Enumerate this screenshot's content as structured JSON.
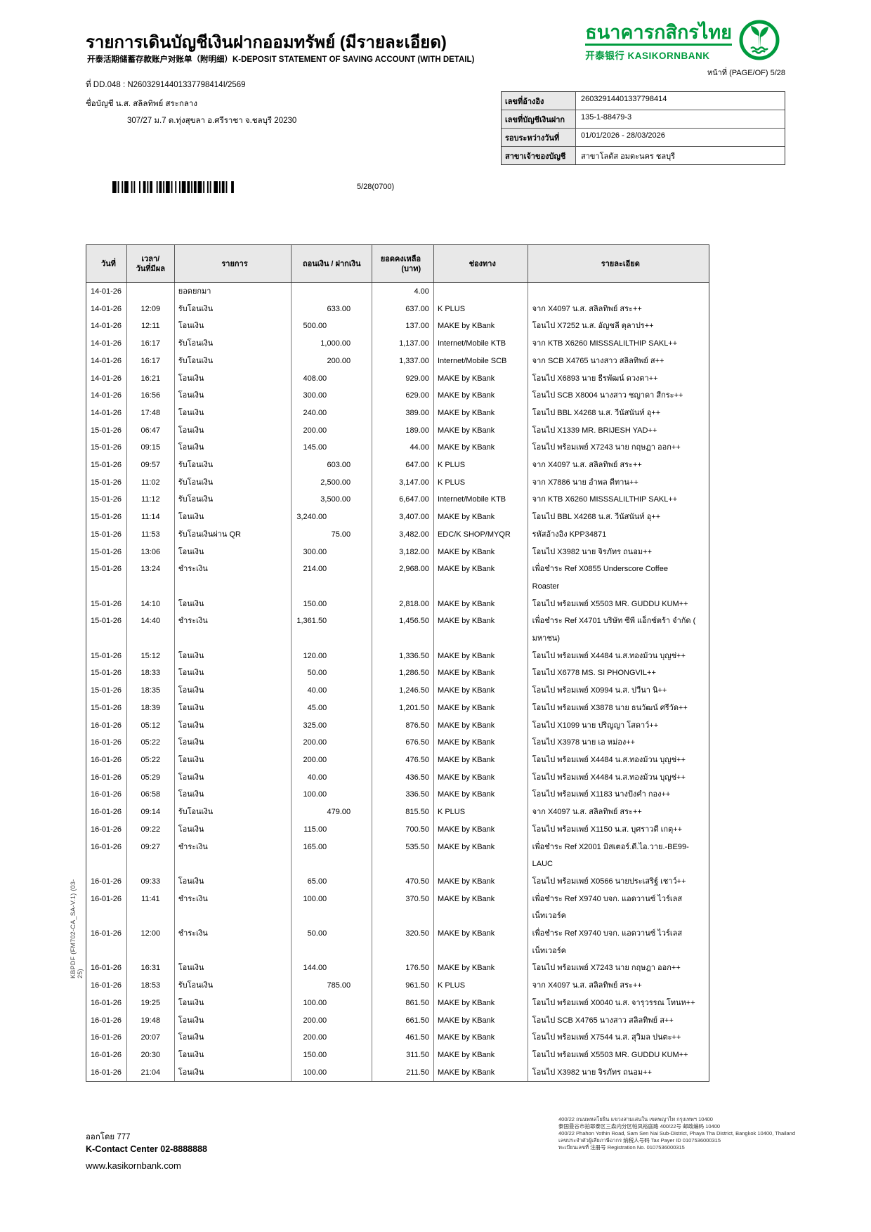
{
  "page": {
    "title_th": "รายการเดินบัญชีเงินฝากออมทรัพย์ (มีรายละเอียด)",
    "title_sub": "开泰活期储蓄存款账户对账单（附明细）K-DEPOSIT STATEMENT OF SAVING ACCOUNT (WITH DETAIL)",
    "page_label": "หน้าที่ (PAGE/OF) 5/28",
    "doc_no": "ที่ DD.048 : N26032914401337798414I/2569",
    "account_line": "ชื่อบัญชี  น.ส. สลิลทิพย์ สระกลาง",
    "account_address": "307/27 ม.7 ต.ทุ่งสุขลา อ.ศรีราชา จ.ชลบุรี 20230",
    "barcode_caption": "5/28(0700)"
  },
  "bank": {
    "name_th": "ธนาคารกสิกรไทย",
    "name_sub": "开泰银行 KASIKORNBANK",
    "brand_green": "#009b3e"
  },
  "info_table": {
    "rows": [
      {
        "label": "เลขที่อ้างอิง",
        "value": "26032914401337798414"
      },
      {
        "label": "เลขที่บัญชีเงินฝาก",
        "value": "135-1-88479-3"
      },
      {
        "label": "รอบระหว่างวันที่",
        "value": "01/01/2026 - 28/03/2026"
      },
      {
        "label": "สาขาเจ้าของบัญชี",
        "value": "สาขาโลตัส อมตะนคร ชลบุรี"
      }
    ]
  },
  "statement": {
    "headers": [
      "วันที่",
      "เวลา/\nวันที่มีผล",
      "รายการ",
      "ถอนเงิน / ฝากเงิน",
      "ยอดคงเหลือ\n(บาท)",
      "ช่องทาง",
      "รายละเอียด"
    ],
    "rows": [
      {
        "date": "14-01-26",
        "time": "",
        "item": "ยอดยกมา",
        "amount": "",
        "kind": "",
        "balance": "4.00",
        "channel": "",
        "detail": ""
      },
      {
        "date": "14-01-26",
        "time": "12:09",
        "item": "รับโอนเงิน",
        "amount": "633.00",
        "kind": "in",
        "balance": "637.00",
        "channel": "K PLUS",
        "detail": "จาก X4097 น.ส. สลิลทิพย์ สระ++"
      },
      {
        "date": "14-01-26",
        "time": "12:11",
        "item": "โอนเงิน",
        "amount": "500.00",
        "kind": "out",
        "balance": "137.00",
        "channel": "MAKE by KBank",
        "detail": "โอนไป X7252 น.ส. อัญชลี ตุลาปร++"
      },
      {
        "date": "14-01-26",
        "time": "16:17",
        "item": "รับโอนเงิน",
        "amount": "1,000.00",
        "kind": "in",
        "balance": "1,137.00",
        "channel": "Internet/Mobile KTB",
        "detail": "จาก KTB X6260 MISSSALILTHIP SAKL++"
      },
      {
        "date": "14-01-26",
        "time": "16:17",
        "item": "รับโอนเงิน",
        "amount": "200.00",
        "kind": "in",
        "balance": "1,337.00",
        "channel": "Internet/Mobile SCB",
        "detail": "จาก SCB X4765 นางสาว สลิลทิพย์ ส++"
      },
      {
        "date": "14-01-26",
        "time": "16:21",
        "item": "โอนเงิน",
        "amount": "408.00",
        "kind": "out",
        "balance": "929.00",
        "channel": "MAKE by KBank",
        "detail": "โอนไป X6893 นาย ธีรพัฒน์ ดวงตา++"
      },
      {
        "date": "14-01-26",
        "time": "16:56",
        "item": "โอนเงิน",
        "amount": "300.00",
        "kind": "out",
        "balance": "629.00",
        "channel": "MAKE by KBank",
        "detail": "โอนไป SCB X8004 นางสาว ชญาดา สีกระ++"
      },
      {
        "date": "14-01-26",
        "time": "17:48",
        "item": "โอนเงิน",
        "amount": "240.00",
        "kind": "out",
        "balance": "389.00",
        "channel": "MAKE by KBank",
        "detail": "โอนไป BBL X4268 น.ส. วีนัสนันท์ อุ++"
      },
      {
        "date": "15-01-26",
        "time": "06:47",
        "item": "โอนเงิน",
        "amount": "200.00",
        "kind": "out",
        "balance": "189.00",
        "channel": "MAKE by KBank",
        "detail": "โอนไป X1339 MR. BRIJESH YAD++"
      },
      {
        "date": "15-01-26",
        "time": "09:15",
        "item": "โอนเงิน",
        "amount": "145.00",
        "kind": "out",
        "balance": "44.00",
        "channel": "MAKE by KBank",
        "detail": "โอนไป พร้อมเพย์ X7243 นาย กฤษฎา ออก++"
      },
      {
        "date": "15-01-26",
        "time": "09:57",
        "item": "รับโอนเงิน",
        "amount": "603.00",
        "kind": "in",
        "balance": "647.00",
        "channel": "K PLUS",
        "detail": "จาก X4097 น.ส. สลิลทิพย์ สระ++"
      },
      {
        "date": "15-01-26",
        "time": "11:02",
        "item": "รับโอนเงิน",
        "amount": "2,500.00",
        "kind": "in",
        "balance": "3,147.00",
        "channel": "K PLUS",
        "detail": "จาก X7886 นาย อำพล ดีทาน++"
      },
      {
        "date": "15-01-26",
        "time": "11:12",
        "item": "รับโอนเงิน",
        "amount": "3,500.00",
        "kind": "in",
        "balance": "6,647.00",
        "channel": "Internet/Mobile KTB",
        "detail": "จาก KTB X6260 MISSSALILTHIP SAKL++"
      },
      {
        "date": "15-01-26",
        "time": "11:14",
        "item": "โอนเงิน",
        "amount": "3,240.00",
        "kind": "out",
        "balance": "3,407.00",
        "channel": "MAKE by KBank",
        "detail": "โอนไป BBL X4268 น.ส. วีนัสนันท์ อุ++"
      },
      {
        "date": "15-01-26",
        "time": "11:53",
        "item": "รับโอนเงินผ่าน QR",
        "amount": "75.00",
        "kind": "in",
        "balance": "3,482.00",
        "channel": "EDC/K SHOP/MYQR",
        "detail": "รหัสอ้างอิง KPP34871"
      },
      {
        "date": "15-01-26",
        "time": "13:06",
        "item": "โอนเงิน",
        "amount": "300.00",
        "kind": "out",
        "balance": "3,182.00",
        "channel": "MAKE by KBank",
        "detail": "โอนไป X3982 นาย จิรภัทร ถนอม++"
      },
      {
        "date": "15-01-26",
        "time": "13:24",
        "item": "ชำระเงิน",
        "amount": "214.00",
        "kind": "out",
        "balance": "2,968.00",
        "channel": "MAKE by KBank",
        "detail": "เพื่อชำระ Ref X0855 Underscore Coffee\nRoaster"
      },
      {
        "date": "15-01-26",
        "time": "14:10",
        "item": "โอนเงิน",
        "amount": "150.00",
        "kind": "out",
        "balance": "2,818.00",
        "channel": "MAKE by KBank",
        "detail": "โอนไป พร้อมเพย์ X5503 MR. GUDDU KUM++"
      },
      {
        "date": "15-01-26",
        "time": "14:40",
        "item": "ชำระเงิน",
        "amount": "1,361.50",
        "kind": "out",
        "balance": "1,456.50",
        "channel": "MAKE by KBank",
        "detail": "เพื่อชำระ Ref X4701 บริษัท ซีพี แอ็กซ์ตร้า จำกัด (\nมหาชน)"
      },
      {
        "date": "15-01-26",
        "time": "15:12",
        "item": "โอนเงิน",
        "amount": "120.00",
        "kind": "out",
        "balance": "1,336.50",
        "channel": "MAKE by KBank",
        "detail": "โอนไป พร้อมเพย์ X4484 น.ส.ทองม้วน บุญช่++"
      },
      {
        "date": "15-01-26",
        "time": "18:33",
        "item": "โอนเงิน",
        "amount": "50.00",
        "kind": "out",
        "balance": "1,286.50",
        "channel": "MAKE by KBank",
        "detail": "โอนไป X6778 MS. SI PHONGVIL++"
      },
      {
        "date": "15-01-26",
        "time": "18:35",
        "item": "โอนเงิน",
        "amount": "40.00",
        "kind": "out",
        "balance": "1,246.50",
        "channel": "MAKE by KBank",
        "detail": "โอนไป พร้อมเพย์ X0994 น.ส. ปวีนา นิ++"
      },
      {
        "date": "15-01-26",
        "time": "18:39",
        "item": "โอนเงิน",
        "amount": "45.00",
        "kind": "out",
        "balance": "1,201.50",
        "channel": "MAKE by KBank",
        "detail": "โอนไป พร้อมเพย์ X3878 นาย ธนวัฒน์ ศรีวัด++"
      },
      {
        "date": "16-01-26",
        "time": "05:12",
        "item": "โอนเงิน",
        "amount": "325.00",
        "kind": "out",
        "balance": "876.50",
        "channel": "MAKE by KBank",
        "detail": "โอนไป X1099 นาย ปริญญา โสดาว์++"
      },
      {
        "date": "16-01-26",
        "time": "05:22",
        "item": "โอนเงิน",
        "amount": "200.00",
        "kind": "out",
        "balance": "676.50",
        "channel": "MAKE by KBank",
        "detail": "โอนไป X3978 นาย เอ หม่อง++"
      },
      {
        "date": "16-01-26",
        "time": "05:22",
        "item": "โอนเงิน",
        "amount": "200.00",
        "kind": "out",
        "balance": "476.50",
        "channel": "MAKE by KBank",
        "detail": "โอนไป พร้อมเพย์ X4484 น.ส.ทองม้วน บุญช่++"
      },
      {
        "date": "16-01-26",
        "time": "05:29",
        "item": "โอนเงิน",
        "amount": "40.00",
        "kind": "out",
        "balance": "436.50",
        "channel": "MAKE by KBank",
        "detail": "โอนไป พร้อมเพย์ X4484 น.ส.ทองม้วน บุญช่++"
      },
      {
        "date": "16-01-26",
        "time": "06:58",
        "item": "โอนเงิน",
        "amount": "100.00",
        "kind": "out",
        "balance": "336.50",
        "channel": "MAKE by KBank",
        "detail": "โอนไป พร้อมเพย์ X1183 นางปังคำ กอง++"
      },
      {
        "date": "16-01-26",
        "time": "09:14",
        "item": "รับโอนเงิน",
        "amount": "479.00",
        "kind": "in",
        "balance": "815.50",
        "channel": "K PLUS",
        "detail": "จาก X4097 น.ส. สลิลทิพย์ สระ++"
      },
      {
        "date": "16-01-26",
        "time": "09:22",
        "item": "โอนเงิน",
        "amount": "115.00",
        "kind": "out",
        "balance": "700.50",
        "channel": "MAKE by KBank",
        "detail": "โอนไป พร้อมเพย์ X1150 น.ส. บุศราวดี เกตุ++"
      },
      {
        "date": "16-01-26",
        "time": "09:27",
        "item": "ชำระเงิน",
        "amount": "165.00",
        "kind": "out",
        "balance": "535.50",
        "channel": "MAKE by KBank",
        "detail": "เพื่อชำระ Ref X2001 มิสเตอร์.ดี.ไอ.วาย.-BE99-\nLAUC"
      },
      {
        "date": "16-01-26",
        "time": "09:33",
        "item": "โอนเงิน",
        "amount": "65.00",
        "kind": "out",
        "balance": "470.50",
        "channel": "MAKE by KBank",
        "detail": "โอนไป พร้อมเพย์ X0566 นายประเสริฐ์ เชาว์++"
      },
      {
        "date": "16-01-26",
        "time": "11:41",
        "item": "ชำระเงิน",
        "amount": "100.00",
        "kind": "out",
        "balance": "370.50",
        "channel": "MAKE by KBank",
        "detail": "เพื่อชำระ Ref X9740 บจก. แอดวานซ์ ไวร์เลส\nเน็ทเวอร์ค"
      },
      {
        "date": "16-01-26",
        "time": "12:00",
        "item": "ชำระเงิน",
        "amount": "50.00",
        "kind": "out",
        "balance": "320.50",
        "channel": "MAKE by KBank",
        "detail": "เพื่อชำระ Ref X9740 บจก. แอดวานซ์ ไวร์เลส\nเน็ทเวอร์ค"
      },
      {
        "date": "16-01-26",
        "time": "16:31",
        "item": "โอนเงิน",
        "amount": "144.00",
        "kind": "out",
        "balance": "176.50",
        "channel": "MAKE by KBank",
        "detail": "โอนไป พร้อมเพย์ X7243 นาย กฤษฎา ออก++"
      },
      {
        "date": "16-01-26",
        "time": "18:53",
        "item": "รับโอนเงิน",
        "amount": "785.00",
        "kind": "in",
        "balance": "961.50",
        "channel": "K PLUS",
        "detail": "จาก X4097 น.ส. สลิลทิพย์ สระ++"
      },
      {
        "date": "16-01-26",
        "time": "19:25",
        "item": "โอนเงิน",
        "amount": "100.00",
        "kind": "out",
        "balance": "861.50",
        "channel": "MAKE by KBank",
        "detail": "โอนไป พร้อมเพย์ X0040 น.ส. จารุวรรณ โทนห++"
      },
      {
        "date": "16-01-26",
        "time": "19:48",
        "item": "โอนเงิน",
        "amount": "200.00",
        "kind": "out",
        "balance": "661.50",
        "channel": "MAKE by KBank",
        "detail": "โอนไป SCB X4765 นางสาว สลิลทิพย์ ส++"
      },
      {
        "date": "16-01-26",
        "time": "20:07",
        "item": "โอนเงิน",
        "amount": "200.00",
        "kind": "out",
        "balance": "461.50",
        "channel": "MAKE by KBank",
        "detail": "โอนไป พร้อมเพย์ X7544 น.ส. สุวิมล ปนตะ++"
      },
      {
        "date": "16-01-26",
        "time": "20:30",
        "item": "โอนเงิน",
        "amount": "150.00",
        "kind": "out",
        "balance": "311.50",
        "channel": "MAKE by KBank",
        "detail": "โอนไป พร้อมเพย์ X5503 MR. GUDDU KUM++"
      },
      {
        "date": "16-01-26",
        "time": "21:04",
        "item": "โอนเงิน",
        "amount": "100.00",
        "kind": "out",
        "balance": "211.50",
        "channel": "MAKE by KBank",
        "detail": "โอนไป X3982 นาย จิรภัทร ถนอม++"
      }
    ]
  },
  "footer": {
    "side_code": "KBPDF (FM702-CA_SA-V.1)  (03-25)",
    "issued_by": "ออกโดย 777",
    "contact": "K-Contact Center 02-8888888",
    "website": "www.kasikornbank.com",
    "address_lines": [
      "400/22 ถนนพหลโยธิน แขวงสามเสนใน เขตพญาไท กรุงเทพฯ 10400",
      "泰国曼谷市拍耶泰区三森内分区帕凤裕庭路 400/22号 邮政编码 10400",
      "400/22 Phahon Yothin Road, Sam Sen Nai Sub-District, Phaya Tha District, Bangkok 10400, Thailand",
      "เลขประจำตัวผู้เสียภาษีอากร 纳税人号码 Tax Payer ID 0107536000315",
      "ทะเบียนเลขที่ 注册号 Registration No. 0107536000315"
    ]
  }
}
